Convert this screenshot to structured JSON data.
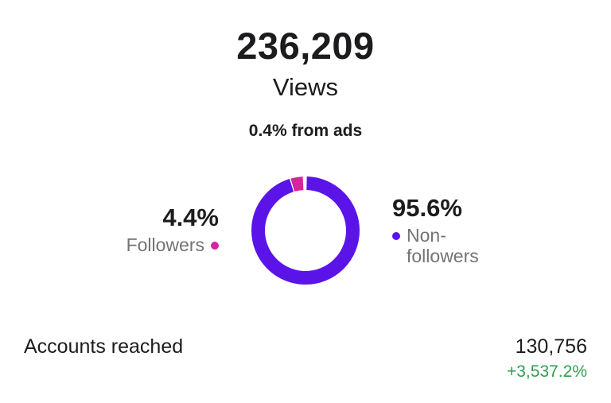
{
  "views": {
    "total": "236,209",
    "label": "Views",
    "ads_note": "0.4% from ads"
  },
  "audience_split": {
    "followers": {
      "percent_label": "4.4%",
      "percent_value": 4.4,
      "label": "Followers",
      "color": "#d6249f"
    },
    "non_followers": {
      "percent_label": "95.6%",
      "percent_value": 95.6,
      "label": "Non-followers",
      "label_lines": [
        "Non-",
        "followers"
      ],
      "color": "#5b14e8"
    }
  },
  "accounts_reached": {
    "label": "Accounts reached",
    "value": "130,756",
    "change": "+3,537.2%",
    "change_color": "#2e9e4f"
  }
}
